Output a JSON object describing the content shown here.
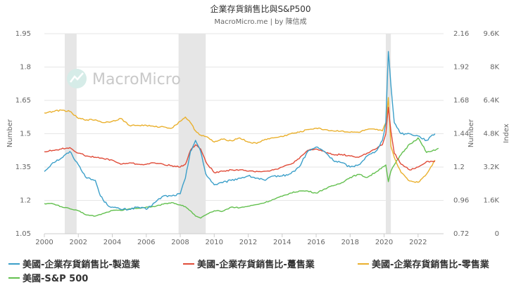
{
  "header": {
    "title": "企業存貨銷售比與S&P500",
    "subtitle": "MacroMicro.me | by 陳信成"
  },
  "watermark": {
    "text": "MacroMicro"
  },
  "chart_data": {
    "type": "line",
    "x_ticks": [
      "2000",
      "2002",
      "2004",
      "2006",
      "2008",
      "2010",
      "2012",
      "2014",
      "2016",
      "2018",
      "2020",
      "2022"
    ],
    "x_range": [
      2000,
      2023.5
    ],
    "recession_bands": [
      [
        2001.2,
        2001.9
      ],
      [
        2007.9,
        2009.5
      ],
      [
        2020.1,
        2020.4
      ]
    ],
    "left_axis": {
      "label": "Number",
      "ticks": [
        "1.05",
        "1.2",
        "1.35",
        "1.5",
        "1.65",
        "1.8",
        "1.95"
      ],
      "range": [
        1.05,
        1.95
      ]
    },
    "right_axis_1": {
      "label": "Number",
      "ticks": [
        "0.72",
        "0.96",
        "1.2",
        "1.44",
        "1.68",
        "1.92",
        "2.16"
      ],
      "range": [
        0.72,
        2.16
      ]
    },
    "right_axis_2": {
      "label": "Index",
      "ticks": [
        "0",
        "1.6K",
        "3.2K",
        "4.8K",
        "6.4K",
        "8K",
        "9.6K"
      ],
      "range": [
        0,
        9600
      ]
    },
    "series": [
      {
        "name": "美國-企業存貨銷售比-製造業",
        "color": "#3b9fc9",
        "axis": "left",
        "points": [
          [
            2000,
            1.33
          ],
          [
            2000.5,
            1.37
          ],
          [
            2001,
            1.39
          ],
          [
            2001.5,
            1.42
          ],
          [
            2002,
            1.36
          ],
          [
            2002.5,
            1.3
          ],
          [
            2003,
            1.29
          ],
          [
            2003.3,
            1.22
          ],
          [
            2003.7,
            1.18
          ],
          [
            2004,
            1.17
          ],
          [
            2004.5,
            1.16
          ],
          [
            2005,
            1.16
          ],
          [
            2005.5,
            1.17
          ],
          [
            2006,
            1.16
          ],
          [
            2006.5,
            1.19
          ],
          [
            2007,
            1.22
          ],
          [
            2007.5,
            1.22
          ],
          [
            2008,
            1.23
          ],
          [
            2008.3,
            1.3
          ],
          [
            2008.6,
            1.42
          ],
          [
            2008.9,
            1.47
          ],
          [
            2009.2,
            1.42
          ],
          [
            2009.5,
            1.32
          ],
          [
            2010,
            1.27
          ],
          [
            2010.5,
            1.28
          ],
          [
            2011,
            1.29
          ],
          [
            2011.5,
            1.3
          ],
          [
            2012,
            1.31
          ],
          [
            2012.5,
            1.3
          ],
          [
            2013,
            1.29
          ],
          [
            2013.5,
            1.31
          ],
          [
            2014,
            1.31
          ],
          [
            2014.5,
            1.32
          ],
          [
            2015,
            1.35
          ],
          [
            2015.5,
            1.42
          ],
          [
            2016,
            1.44
          ],
          [
            2016.5,
            1.42
          ],
          [
            2017,
            1.38
          ],
          [
            2017.5,
            1.37
          ],
          [
            2018,
            1.35
          ],
          [
            2018.5,
            1.36
          ],
          [
            2019,
            1.4
          ],
          [
            2019.5,
            1.42
          ],
          [
            2019.9,
            1.47
          ],
          [
            2020.1,
            1.55
          ],
          [
            2020.25,
            1.87
          ],
          [
            2020.4,
            1.72
          ],
          [
            2020.6,
            1.55
          ],
          [
            2021,
            1.5
          ],
          [
            2021.5,
            1.5
          ],
          [
            2022,
            1.49
          ],
          [
            2022.5,
            1.47
          ],
          [
            2023,
            1.5
          ]
        ]
      },
      {
        "name": "美國-企業存貨銷售比-躉售業",
        "color": "#e04b38",
        "axis": "right1",
        "points": [
          [
            2000,
            1.31
          ],
          [
            2000.5,
            1.32
          ],
          [
            2001,
            1.33
          ],
          [
            2001.5,
            1.34
          ],
          [
            2002,
            1.3
          ],
          [
            2002.5,
            1.28
          ],
          [
            2003,
            1.27
          ],
          [
            2003.5,
            1.26
          ],
          [
            2004,
            1.25
          ],
          [
            2004.5,
            1.22
          ],
          [
            2005,
            1.23
          ],
          [
            2005.5,
            1.22
          ],
          [
            2006,
            1.22
          ],
          [
            2006.5,
            1.23
          ],
          [
            2007,
            1.22
          ],
          [
            2007.5,
            1.21
          ],
          [
            2008,
            1.2
          ],
          [
            2008.3,
            1.22
          ],
          [
            2008.6,
            1.32
          ],
          [
            2008.9,
            1.36
          ],
          [
            2009.2,
            1.33
          ],
          [
            2009.5,
            1.24
          ],
          [
            2010,
            1.16
          ],
          [
            2010.5,
            1.17
          ],
          [
            2011,
            1.18
          ],
          [
            2011.5,
            1.18
          ],
          [
            2012,
            1.17
          ],
          [
            2012.5,
            1.17
          ],
          [
            2013,
            1.17
          ],
          [
            2013.5,
            1.18
          ],
          [
            2014,
            1.2
          ],
          [
            2014.5,
            1.22
          ],
          [
            2015,
            1.26
          ],
          [
            2015.5,
            1.32
          ],
          [
            2016,
            1.33
          ],
          [
            2016.5,
            1.31
          ],
          [
            2017,
            1.29
          ],
          [
            2017.5,
            1.29
          ],
          [
            2018,
            1.28
          ],
          [
            2018.5,
            1.27
          ],
          [
            2019,
            1.3
          ],
          [
            2019.5,
            1.33
          ],
          [
            2019.9,
            1.36
          ],
          [
            2020.1,
            1.44
          ],
          [
            2020.25,
            1.63
          ],
          [
            2020.4,
            1.46
          ],
          [
            2020.6,
            1.3
          ],
          [
            2021,
            1.22
          ],
          [
            2021.5,
            1.18
          ],
          [
            2022,
            1.2
          ],
          [
            2022.5,
            1.24
          ],
          [
            2023,
            1.24
          ]
        ]
      },
      {
        "name": "美國-企業存貨銷售比-零售業",
        "color": "#eab02d",
        "axis": "right1",
        "points": [
          [
            2000,
            1.59
          ],
          [
            2000.5,
            1.6
          ],
          [
            2001,
            1.61
          ],
          [
            2001.5,
            1.6
          ],
          [
            2002,
            1.55
          ],
          [
            2002.5,
            1.54
          ],
          [
            2003,
            1.54
          ],
          [
            2003.5,
            1.52
          ],
          [
            2004,
            1.53
          ],
          [
            2004.5,
            1.55
          ],
          [
            2005,
            1.5
          ],
          [
            2005.5,
            1.5
          ],
          [
            2006,
            1.5
          ],
          [
            2006.5,
            1.49
          ],
          [
            2007,
            1.49
          ],
          [
            2007.5,
            1.48
          ],
          [
            2008,
            1.53
          ],
          [
            2008.3,
            1.56
          ],
          [
            2008.6,
            1.52
          ],
          [
            2008.9,
            1.46
          ],
          [
            2009.2,
            1.43
          ],
          [
            2009.5,
            1.42
          ],
          [
            2010,
            1.38
          ],
          [
            2010.5,
            1.4
          ],
          [
            2011,
            1.39
          ],
          [
            2011.5,
            1.41
          ],
          [
            2012,
            1.38
          ],
          [
            2012.5,
            1.37
          ],
          [
            2013,
            1.4
          ],
          [
            2013.5,
            1.41
          ],
          [
            2014,
            1.42
          ],
          [
            2014.5,
            1.44
          ],
          [
            2015,
            1.45
          ],
          [
            2015.5,
            1.47
          ],
          [
            2016,
            1.48
          ],
          [
            2016.5,
            1.47
          ],
          [
            2017,
            1.46
          ],
          [
            2017.5,
            1.46
          ],
          [
            2018,
            1.45
          ],
          [
            2018.5,
            1.45
          ],
          [
            2019,
            1.47
          ],
          [
            2019.5,
            1.47
          ],
          [
            2019.9,
            1.46
          ],
          [
            2020.1,
            1.52
          ],
          [
            2020.25,
            1.7
          ],
          [
            2020.4,
            1.35
          ],
          [
            2020.6,
            1.27
          ],
          [
            2021,
            1.16
          ],
          [
            2021.5,
            1.1
          ],
          [
            2022,
            1.09
          ],
          [
            2022.5,
            1.15
          ],
          [
            2023,
            1.25
          ]
        ]
      },
      {
        "name": "美國-S&P 500",
        "color": "#63c04f",
        "axis": "right2",
        "points": [
          [
            2000,
            1450
          ],
          [
            2000.5,
            1440
          ],
          [
            2001,
            1300
          ],
          [
            2001.5,
            1200
          ],
          [
            2002,
            1100
          ],
          [
            2002.5,
            900
          ],
          [
            2003,
            850
          ],
          [
            2003.5,
            980
          ],
          [
            2004,
            1120
          ],
          [
            2004.5,
            1120
          ],
          [
            2005,
            1200
          ],
          [
            2005.5,
            1220
          ],
          [
            2006,
            1280
          ],
          [
            2006.5,
            1300
          ],
          [
            2007,
            1420
          ],
          [
            2007.5,
            1500
          ],
          [
            2008,
            1380
          ],
          [
            2008.3,
            1300
          ],
          [
            2008.6,
            1100
          ],
          [
            2008.9,
            850
          ],
          [
            2009.2,
            750
          ],
          [
            2009.5,
            900
          ],
          [
            2010,
            1100
          ],
          [
            2010.5,
            1080
          ],
          [
            2011,
            1280
          ],
          [
            2011.5,
            1250
          ],
          [
            2012,
            1320
          ],
          [
            2012.5,
            1400
          ],
          [
            2013,
            1500
          ],
          [
            2013.5,
            1650
          ],
          [
            2014,
            1800
          ],
          [
            2014.5,
            1950
          ],
          [
            2015,
            2050
          ],
          [
            2015.5,
            2050
          ],
          [
            2016,
            1950
          ],
          [
            2016.5,
            2150
          ],
          [
            2017,
            2300
          ],
          [
            2017.5,
            2450
          ],
          [
            2018,
            2700
          ],
          [
            2018.5,
            2850
          ],
          [
            2019,
            2700
          ],
          [
            2019.5,
            2950
          ],
          [
            2019.9,
            3200
          ],
          [
            2020.1,
            3300
          ],
          [
            2020.25,
            2500
          ],
          [
            2020.4,
            3000
          ],
          [
            2020.6,
            3300
          ],
          [
            2021,
            3800
          ],
          [
            2021.5,
            4300
          ],
          [
            2022,
            4600
          ],
          [
            2022.5,
            3900
          ],
          [
            2023,
            4000
          ],
          [
            2023.2,
            4100
          ]
        ]
      }
    ]
  },
  "legend": {
    "items": [
      {
        "label": "美國-企業存貨銷售比-製造業",
        "color": "#3b9fc9"
      },
      {
        "label": "美國-企業存貨銷售比-躉售業",
        "color": "#e04b38"
      },
      {
        "label": "美國-企業存貨銷售比-零售業",
        "color": "#eab02d"
      },
      {
        "label": "美國-S&P 500",
        "color": "#63c04f"
      }
    ]
  }
}
